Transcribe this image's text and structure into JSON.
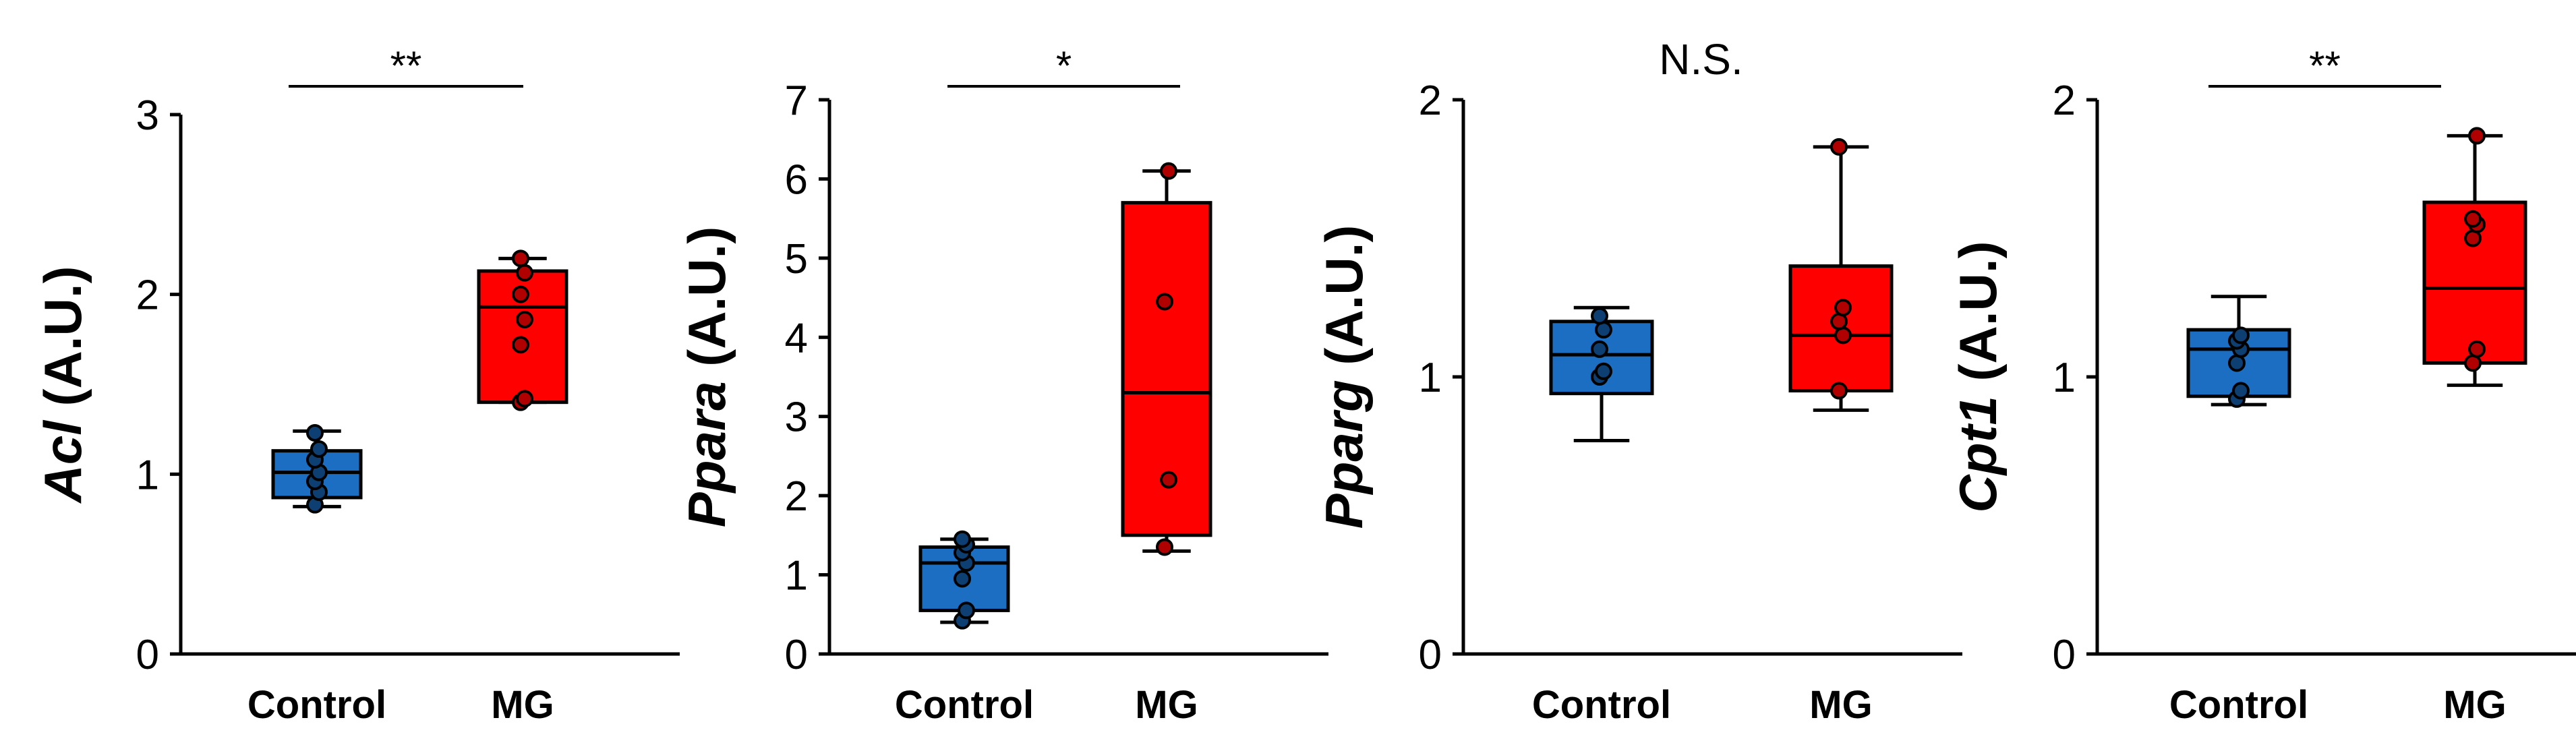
{
  "chart_data": [
    {
      "type": "box",
      "gene": "Acl",
      "ylabel": "Acl (A.U.)",
      "ylabel_unit": "(A.U.)",
      "ylim": [
        0,
        3
      ],
      "yticks": [
        0,
        1,
        2,
        3
      ],
      "categories": [
        "Control",
        "MG"
      ],
      "significance": "**",
      "boxes": [
        {
          "group": "Control",
          "color": "#1b6ec2",
          "min": 0.82,
          "q1": 0.87,
          "median": 1.01,
          "q3": 1.13,
          "max": 1.24,
          "points": [
            0.83,
            0.9,
            0.96,
            1.01,
            1.08,
            1.14,
            1.23
          ]
        },
        {
          "group": "MG",
          "color": "#ff0000",
          "min": 1.4,
          "q1": 1.4,
          "median": 1.93,
          "q3": 2.13,
          "max": 2.2,
          "points": [
            1.4,
            1.42,
            1.72,
            1.86,
            2.0,
            2.12,
            2.2
          ]
        }
      ]
    },
    {
      "type": "box",
      "gene": "Ppara",
      "ylabel": "Ppara (A.U.)",
      "ylabel_unit": "(A.U.)",
      "ylim": [
        0,
        7
      ],
      "yticks": [
        0,
        1,
        2,
        3,
        4,
        5,
        6,
        7
      ],
      "categories": [
        "Control",
        "MG"
      ],
      "significance": "*",
      "boxes": [
        {
          "group": "Control",
          "color": "#1b6ec2",
          "min": 0.4,
          "q1": 0.55,
          "median": 1.15,
          "q3": 1.35,
          "max": 1.45,
          "points": [
            0.42,
            0.55,
            0.95,
            1.15,
            1.28,
            1.38,
            1.45
          ]
        },
        {
          "group": "MG",
          "color": "#ff0000",
          "min": 1.3,
          "q1": 1.5,
          "median": 3.3,
          "q3": 5.7,
          "max": 6.1,
          "points": [
            1.35,
            2.2,
            4.45,
            6.1
          ]
        }
      ]
    },
    {
      "type": "box",
      "gene": "Pparg",
      "ylabel": "Pparg (A.U.)",
      "ylabel_unit": "(A.U.)",
      "ylim": [
        0,
        2
      ],
      "yticks": [
        0,
        1,
        2
      ],
      "categories": [
        "Control",
        "MG"
      ],
      "significance": "N.S.",
      "boxes": [
        {
          "group": "Control",
          "color": "#1b6ec2",
          "min": 0.77,
          "q1": 0.94,
          "median": 1.08,
          "q3": 1.2,
          "max": 1.25,
          "points": [
            1.0,
            1.02,
            1.1,
            1.17,
            1.22
          ]
        },
        {
          "group": "MG",
          "color": "#ff0000",
          "min": 0.88,
          "q1": 0.95,
          "median": 1.15,
          "q3": 1.4,
          "max": 1.83,
          "points": [
            0.95,
            1.15,
            1.2,
            1.25,
            1.83
          ]
        }
      ]
    },
    {
      "type": "box",
      "gene": "Cpt1",
      "ylabel": "Cpt1 (A.U.)",
      "ylabel_unit": "(A.U.)",
      "ylim": [
        0,
        2
      ],
      "yticks": [
        0,
        1,
        2
      ],
      "categories": [
        "Control",
        "MG"
      ],
      "significance": "**",
      "boxes": [
        {
          "group": "Control",
          "color": "#1b6ec2",
          "min": 0.9,
          "q1": 0.93,
          "median": 1.1,
          "q3": 1.17,
          "max": 1.29,
          "points": [
            0.92,
            0.95,
            1.05,
            1.1,
            1.13,
            1.15
          ]
        },
        {
          "group": "MG",
          "color": "#ff0000",
          "min": 0.97,
          "q1": 1.05,
          "median": 1.32,
          "q3": 1.63,
          "max": 1.87,
          "points": [
            1.05,
            1.1,
            1.5,
            1.55,
            1.57,
            1.87
          ]
        }
      ]
    }
  ]
}
